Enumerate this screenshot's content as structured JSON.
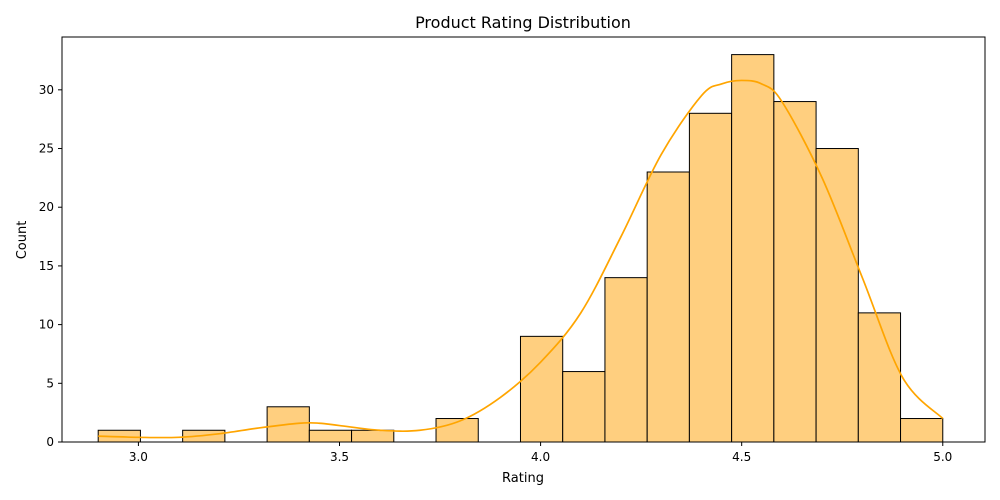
{
  "chart_data": {
    "type": "bar",
    "title": "Product Rating Distribution",
    "xlabel": "Rating",
    "ylabel": "Count",
    "xlim": [
      2.81,
      5.105
    ],
    "ylim": [
      0,
      34.5
    ],
    "x_ticks": [
      3.0,
      3.5,
      4.0,
      4.5,
      5.0
    ],
    "x_tick_labels": [
      "3.0",
      "3.5",
      "4.0",
      "4.5",
      "5.0"
    ],
    "y_ticks": [
      0,
      5,
      10,
      15,
      20,
      25,
      30
    ],
    "y_tick_labels": [
      "0",
      "5",
      "10",
      "15",
      "20",
      "25",
      "30"
    ],
    "bins": [
      {
        "start": 2.9,
        "end": 3.005,
        "count": 1
      },
      {
        "start": 3.005,
        "end": 3.11,
        "count": 0
      },
      {
        "start": 3.11,
        "end": 3.215,
        "count": 1
      },
      {
        "start": 3.215,
        "end": 3.32,
        "count": 0
      },
      {
        "start": 3.32,
        "end": 3.425,
        "count": 3
      },
      {
        "start": 3.425,
        "end": 3.53,
        "count": 1
      },
      {
        "start": 3.53,
        "end": 3.635,
        "count": 1
      },
      {
        "start": 3.635,
        "end": 3.74,
        "count": 0
      },
      {
        "start": 3.74,
        "end": 3.845,
        "count": 2
      },
      {
        "start": 3.845,
        "end": 3.95,
        "count": 0
      },
      {
        "start": 3.95,
        "end": 4.055,
        "count": 9
      },
      {
        "start": 4.055,
        "end": 4.16,
        "count": 6
      },
      {
        "start": 4.16,
        "end": 4.265,
        "count": 14
      },
      {
        "start": 4.265,
        "end": 4.37,
        "count": 23
      },
      {
        "start": 4.37,
        "end": 4.475,
        "count": 28
      },
      {
        "start": 4.475,
        "end": 4.58,
        "count": 33
      },
      {
        "start": 4.58,
        "end": 4.685,
        "count": 29
      },
      {
        "start": 4.685,
        "end": 4.79,
        "count": 25
      },
      {
        "start": 4.79,
        "end": 4.895,
        "count": 11
      },
      {
        "start": 4.895,
        "end": 5.0,
        "count": 2
      }
    ],
    "kde": {
      "x": [
        2.9,
        3.0,
        3.1,
        3.2,
        3.3,
        3.4,
        3.45,
        3.5,
        3.6,
        3.7,
        3.8,
        3.9,
        4.0,
        4.1,
        4.2,
        4.3,
        4.4,
        4.45,
        4.5,
        4.55,
        4.6,
        4.7,
        4.8,
        4.9,
        5.0
      ],
      "y": [
        0.5,
        0.4,
        0.4,
        0.7,
        1.2,
        1.6,
        1.6,
        1.4,
        1.0,
        1.0,
        1.8,
        3.8,
        6.8,
        11.0,
        17.5,
        24.5,
        29.5,
        30.5,
        30.8,
        30.5,
        29.0,
        22.5,
        14.0,
        5.5,
        2.0
      ]
    },
    "colors": {
      "bar_fill": "#ffcf7f",
      "bar_edge": "#000000",
      "kde_line": "#ffa500"
    },
    "grid": false,
    "legend": "none"
  }
}
